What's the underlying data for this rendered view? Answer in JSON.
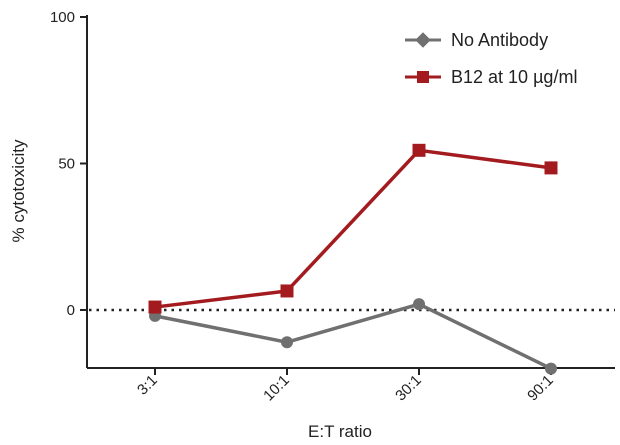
{
  "chart_data": {
    "type": "line",
    "title": "",
    "xlabel": "E:T ratio",
    "ylabel": "% cytotoxicity",
    "categories": [
      "3:1",
      "10:1",
      "30:1",
      "90:1"
    ],
    "ylim": [
      -20,
      100
    ],
    "yticks": [
      0,
      50,
      100
    ],
    "reference_line": {
      "y": 0,
      "style": "dotted"
    },
    "grid": false,
    "legend_position": "top-right",
    "series": [
      {
        "name": "No Antibody",
        "values": [
          -2,
          -11,
          2,
          -20
        ],
        "color": "#707070",
        "marker": "circle"
      },
      {
        "name": "B12 at 10 µg/ml",
        "values": [
          1,
          6.5,
          54.5,
          48.5
        ],
        "color": "#a31b1f",
        "marker": "square"
      }
    ]
  }
}
